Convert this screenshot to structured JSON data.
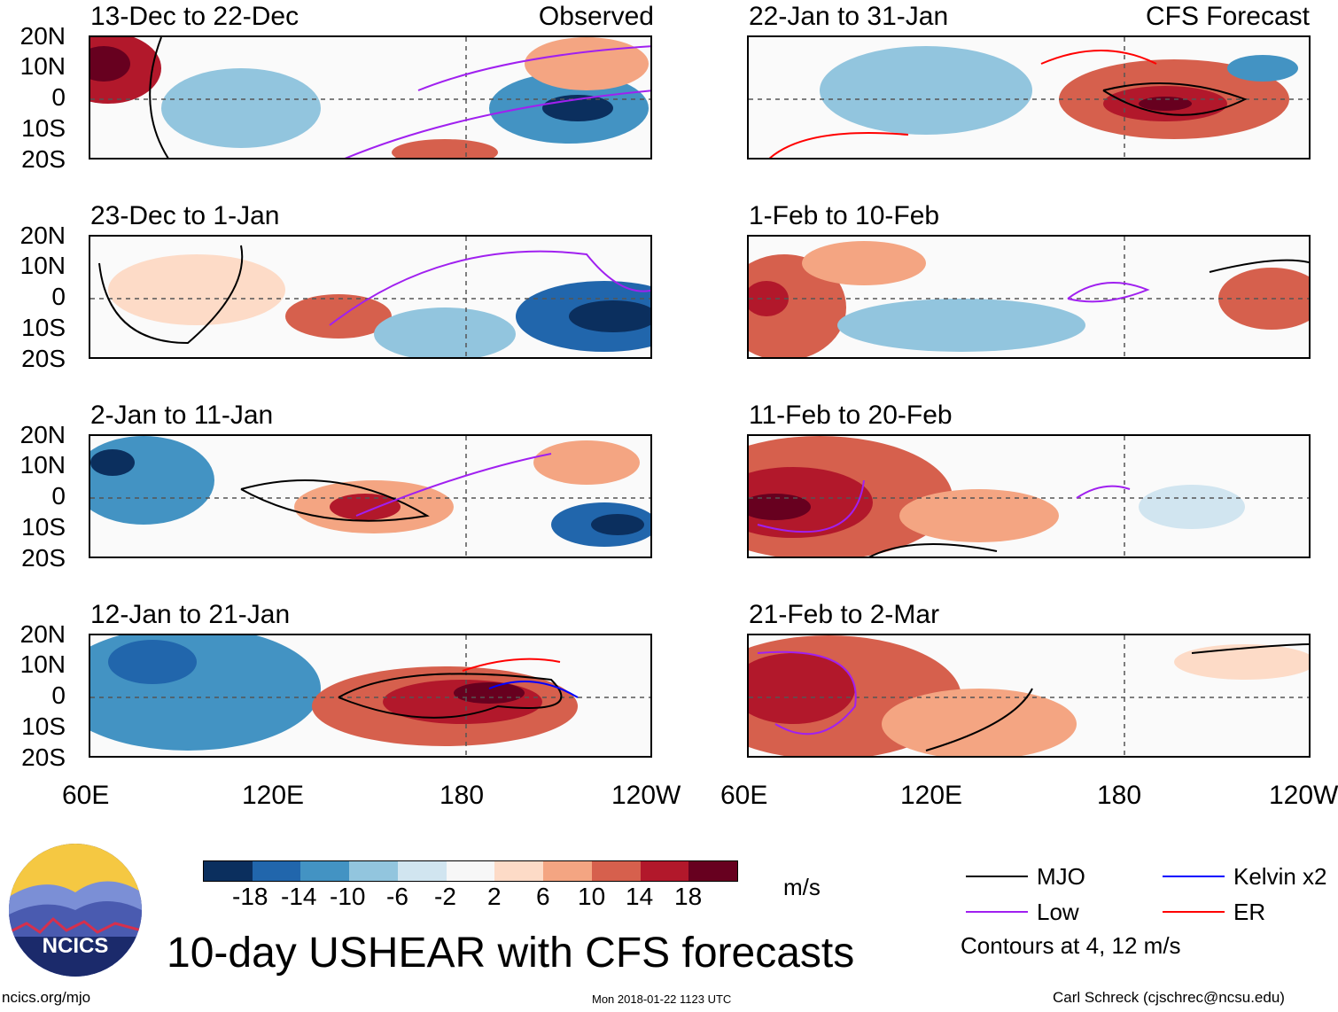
{
  "title": "10-day USHEAR with CFS forecasts",
  "units": "m/s",
  "logo_text": "NCICS",
  "footer": {
    "left": "ncics.org/mjo",
    "center": "Mon 2018-01-22 1123 UTC",
    "right": "Carl Schreck (cjschrec@ncsu.edu)"
  },
  "panel_labels": {
    "observed": "Observed",
    "forecast": "CFS Forecast"
  },
  "panels": {
    "p1": "13-Dec to 22-Dec",
    "p2": "23-Dec to 1-Jan",
    "p3": "2-Jan to 11-Jan",
    "p4": "12-Jan to 21-Jan",
    "p5": "22-Jan to 31-Jan",
    "p6": "1-Feb to 10-Feb",
    "p7": "11-Feb to 20-Feb",
    "p8": "21-Feb to 2-Mar"
  },
  "y_axis": [
    "20N",
    "10N",
    "0",
    "10S",
    "20S"
  ],
  "x_axis": [
    "60E",
    "120E",
    "180",
    "120W"
  ],
  "colorbar": {
    "colors": [
      "#0b2f5e",
      "#2166ac",
      "#4393c3",
      "#92c5de",
      "#d1e5f0",
      "#f7f7f7",
      "#fddbc7",
      "#f4a582",
      "#d6604d",
      "#b2182b",
      "#67001f"
    ],
    "ticks": [
      "-18",
      "-14",
      "-10",
      "-6",
      "-2",
      "2",
      "6",
      "10",
      "14",
      "18"
    ]
  },
  "legend": {
    "mjo": "MJO",
    "low": "Low",
    "kelvin": "Kelvin x2",
    "er": "ER",
    "contours": "Contours at 4, 12 m/s",
    "colors": {
      "mjo": "#000000",
      "low": "#a020f0",
      "kelvin": "#0000ff",
      "er": "#ff0000"
    }
  }
}
